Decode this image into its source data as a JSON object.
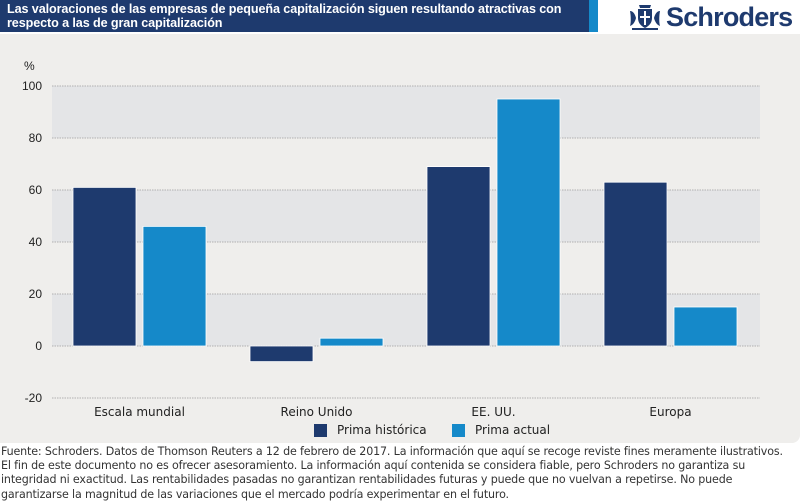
{
  "header": {
    "title": "Las valoraciones de las empresas de pequeña capitalización siguen resultando atractivas con respecto a las de gran capitalización",
    "brand": "Schroders",
    "logo_icon": "crest-icon"
  },
  "colors": {
    "historic": "#1e3a6e",
    "current": "#1589c9",
    "band": "#e4e5e7",
    "background": "#efeeec",
    "title_bg": "#1e3a6e"
  },
  "chart_data": {
    "type": "bar",
    "title": "Las valoraciones de las empresas de pequeña capitalización siguen resultando atractivas con respecto a las de gran capitalización",
    "xlabel": "",
    "ylabel": "%",
    "ylim": [
      -20,
      100
    ],
    "yticks": [
      100,
      80,
      60,
      40,
      20,
      0,
      -20
    ],
    "ytick_labels": [
      "100",
      "80",
      "60",
      "40",
      "20",
      "0",
      "-20"
    ],
    "grid": true,
    "legend_position": "bottom",
    "categories": [
      "Escala mundial",
      "Reino Unido",
      "EE. UU.",
      "Europa"
    ],
    "series": [
      {
        "name": "Prima histórica",
        "values": [
          61,
          -6,
          69,
          63
        ]
      },
      {
        "name": "Prima actual",
        "values": [
          46,
          3,
          95,
          15
        ]
      }
    ]
  },
  "footer": {
    "line1": "Fuente: Schroders. Datos de Thomson Reuters a 12 de febrero de 2017. La información que aquí se recoge reviste fines meramente ilustrativos.",
    "line2": "El fin de este documento no es ofrecer asesoramiento. La información aquí contenida se considera fiable, pero Schroders no garantiza su",
    "line3": "integridad ni exactitud. Las rentabilidades pasadas no garantizan rentabilidades futuras y puede que no vuelvan a repetirse. No puede",
    "line4": "garantizarse la magnitud de las variaciones que el mercado podría experimentar en el futuro."
  }
}
